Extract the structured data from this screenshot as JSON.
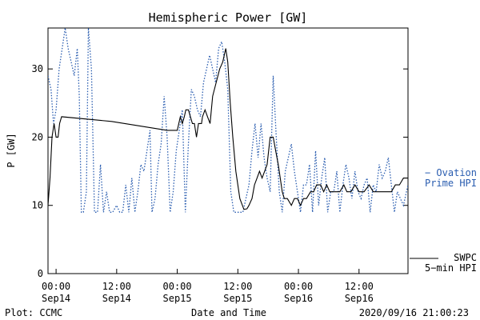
{
  "chart_data": {
    "type": "line",
    "title": "Hemispheric Power [GW]",
    "xlabel": "Date and Time",
    "ylabel": "P [GW]",
    "ylim": [
      0,
      36
    ],
    "y_ticks": [
      0,
      10,
      20,
      30
    ],
    "x_ticks": [
      {
        "time": "00:00",
        "date": "Sep14",
        "hours": 0
      },
      {
        "time": "12:00",
        "date": "Sep14",
        "hours": 12
      },
      {
        "time": "00:00",
        "date": "Sep15",
        "hours": 24
      },
      {
        "time": "12:00",
        "date": "Sep15",
        "hours": 36
      },
      {
        "time": "00:00",
        "date": "Sep16",
        "hours": 48
      },
      {
        "time": "12:00",
        "date": "Sep16",
        "hours": 60
      }
    ],
    "xlim_hours": [
      -1.6,
      69.7
    ],
    "series": [
      {
        "name": "SWPC 5-min HPI",
        "label_lines": [
          "SWPC",
          "5−min HPI"
        ],
        "color": "#000000",
        "style": "solid",
        "points": [
          [
            -1.6,
            10
          ],
          [
            -1.2,
            14
          ],
          [
            -0.8,
            20
          ],
          [
            -0.4,
            22
          ],
          [
            0,
            20
          ],
          [
            0.4,
            20
          ],
          [
            0.7,
            22
          ],
          [
            1.1,
            23
          ],
          [
            11,
            22.3
          ],
          [
            22,
            21
          ],
          [
            24,
            21
          ],
          [
            24.3,
            22
          ],
          [
            24.6,
            23
          ],
          [
            25,
            22
          ],
          [
            25.4,
            23
          ],
          [
            25.7,
            24
          ],
          [
            26.2,
            24
          ],
          [
            26.6,
            23
          ],
          [
            27,
            22
          ],
          [
            27.4,
            22
          ],
          [
            27.8,
            20
          ],
          [
            28.2,
            22
          ],
          [
            28.8,
            22
          ],
          [
            29,
            23
          ],
          [
            29.5,
            24
          ],
          [
            30,
            23
          ],
          [
            30.5,
            22
          ],
          [
            31,
            26
          ],
          [
            31.7,
            28
          ],
          [
            32.4,
            30
          ],
          [
            33,
            31
          ],
          [
            33.6,
            33
          ],
          [
            34,
            31
          ],
          [
            34.5,
            25
          ],
          [
            35,
            20
          ],
          [
            35.6,
            15
          ],
          [
            36.4,
            11
          ],
          [
            37.2,
            9.4
          ],
          [
            37.8,
            9.5
          ],
          [
            38.2,
            10
          ],
          [
            38.8,
            11
          ],
          [
            39.3,
            13
          ],
          [
            39.8,
            14
          ],
          [
            40.3,
            15
          ],
          [
            40.8,
            14
          ],
          [
            41.3,
            15
          ],
          [
            41.8,
            16
          ],
          [
            42.4,
            20
          ],
          [
            43,
            20
          ],
          [
            43.5,
            18
          ],
          [
            44,
            16
          ],
          [
            44.4,
            14
          ],
          [
            44.8,
            12
          ],
          [
            45.2,
            11
          ],
          [
            45.8,
            11
          ],
          [
            46.6,
            10
          ],
          [
            47.2,
            11
          ],
          [
            47.8,
            11
          ],
          [
            48.4,
            10
          ],
          [
            49,
            11
          ],
          [
            49.6,
            11
          ],
          [
            50.4,
            12
          ],
          [
            51,
            12
          ],
          [
            51.6,
            13
          ],
          [
            52.4,
            13
          ],
          [
            53,
            12
          ],
          [
            53.6,
            13
          ],
          [
            54.2,
            12
          ],
          [
            55,
            12
          ],
          [
            55.6,
            12
          ],
          [
            56.2,
            12
          ],
          [
            57,
            13
          ],
          [
            57.6,
            12
          ],
          [
            58.4,
            12
          ],
          [
            59.2,
            13
          ],
          [
            60,
            12
          ],
          [
            61,
            12
          ],
          [
            62,
            13
          ],
          [
            62.8,
            12
          ],
          [
            63.6,
            12
          ],
          [
            64.4,
            12
          ],
          [
            65.4,
            12
          ],
          [
            66.4,
            12
          ],
          [
            67.2,
            13
          ],
          [
            68,
            13
          ],
          [
            68.8,
            14
          ],
          [
            69.7,
            14
          ]
        ]
      },
      {
        "name": "Ovation Prime HPI",
        "label_lines": [
          "− Ovation",
          "Prime HPI"
        ],
        "color": "#2a5db0",
        "style": "dotted",
        "points": [
          [
            -1.6,
            29
          ],
          [
            -1,
            27
          ],
          [
            -0.5,
            22
          ],
          [
            0,
            24
          ],
          [
            0.6,
            30
          ],
          [
            1.2,
            33
          ],
          [
            1.8,
            36
          ],
          [
            2.4,
            33
          ],
          [
            3,
            31
          ],
          [
            3.6,
            29
          ],
          [
            4.2,
            33
          ],
          [
            4.6,
            26
          ],
          [
            5,
            9
          ],
          [
            5.4,
            9
          ],
          [
            6,
            12
          ],
          [
            6.4,
            36
          ],
          [
            7,
            30
          ],
          [
            7.6,
            9
          ],
          [
            8.2,
            9
          ],
          [
            8.8,
            16
          ],
          [
            9.4,
            9
          ],
          [
            10,
            12
          ],
          [
            10.6,
            9
          ],
          [
            11.2,
            9
          ],
          [
            12,
            10
          ],
          [
            12.6,
            9
          ],
          [
            13.2,
            9
          ],
          [
            13.8,
            13
          ],
          [
            14.4,
            9
          ],
          [
            15,
            14
          ],
          [
            15.6,
            9
          ],
          [
            16.2,
            12
          ],
          [
            16.8,
            16
          ],
          [
            17.4,
            15
          ],
          [
            18,
            18
          ],
          [
            18.6,
            21
          ],
          [
            19,
            9
          ],
          [
            19.6,
            11
          ],
          [
            20.2,
            16
          ],
          [
            20.8,
            19
          ],
          [
            21.4,
            26
          ],
          [
            22,
            20
          ],
          [
            22.6,
            9
          ],
          [
            23.2,
            12
          ],
          [
            23.8,
            18
          ],
          [
            24.4,
            21
          ],
          [
            25,
            24
          ],
          [
            25.6,
            9
          ],
          [
            26.2,
            19
          ],
          [
            26.8,
            27
          ],
          [
            27.4,
            26
          ],
          [
            28,
            24
          ],
          [
            28.6,
            23
          ],
          [
            29.2,
            28
          ],
          [
            29.8,
            30
          ],
          [
            30.4,
            32
          ],
          [
            31,
            30
          ],
          [
            31.6,
            28
          ],
          [
            32.2,
            33
          ],
          [
            32.8,
            34
          ],
          [
            33.4,
            31
          ],
          [
            34,
            27
          ],
          [
            34.6,
            12
          ],
          [
            35.2,
            9
          ],
          [
            35.8,
            9
          ],
          [
            36.4,
            9
          ],
          [
            37,
            9
          ],
          [
            37.6,
            11
          ],
          [
            38.2,
            13
          ],
          [
            38.8,
            18
          ],
          [
            39.4,
            22
          ],
          [
            40,
            17
          ],
          [
            40.6,
            22
          ],
          [
            41.2,
            17
          ],
          [
            41.8,
            14
          ],
          [
            42.4,
            12
          ],
          [
            43,
            29
          ],
          [
            43.6,
            20
          ],
          [
            44.2,
            12
          ],
          [
            44.8,
            9
          ],
          [
            45.4,
            15
          ],
          [
            46,
            17
          ],
          [
            46.6,
            19
          ],
          [
            47.2,
            15
          ],
          [
            47.8,
            12
          ],
          [
            48.4,
            9
          ],
          [
            49,
            13
          ],
          [
            49.6,
            13
          ],
          [
            50.2,
            16
          ],
          [
            50.8,
            9
          ],
          [
            51.4,
            18
          ],
          [
            52,
            10
          ],
          [
            52.6,
            14
          ],
          [
            53.2,
            17
          ],
          [
            53.8,
            9
          ],
          [
            54.4,
            12
          ],
          [
            55,
            12
          ],
          [
            55.6,
            15
          ],
          [
            56.2,
            9
          ],
          [
            56.8,
            13
          ],
          [
            57.4,
            16
          ],
          [
            58,
            14
          ],
          [
            58.6,
            11
          ],
          [
            59.2,
            15
          ],
          [
            59.8,
            12
          ],
          [
            60.4,
            11
          ],
          [
            61,
            13
          ],
          [
            61.6,
            14
          ],
          [
            62.2,
            9
          ],
          [
            62.8,
            13
          ],
          [
            63.4,
            12
          ],
          [
            64,
            16
          ],
          [
            64.6,
            14
          ],
          [
            65.2,
            15
          ],
          [
            65.8,
            17
          ],
          [
            66.4,
            13
          ],
          [
            67,
            9
          ],
          [
            67.6,
            12
          ],
          [
            68.2,
            11
          ],
          [
            68.8,
            10
          ],
          [
            69.7,
            13
          ]
        ]
      }
    ],
    "footer": {
      "left": "Plot: CCMC",
      "right": "2020/09/16 21:00:23"
    }
  }
}
